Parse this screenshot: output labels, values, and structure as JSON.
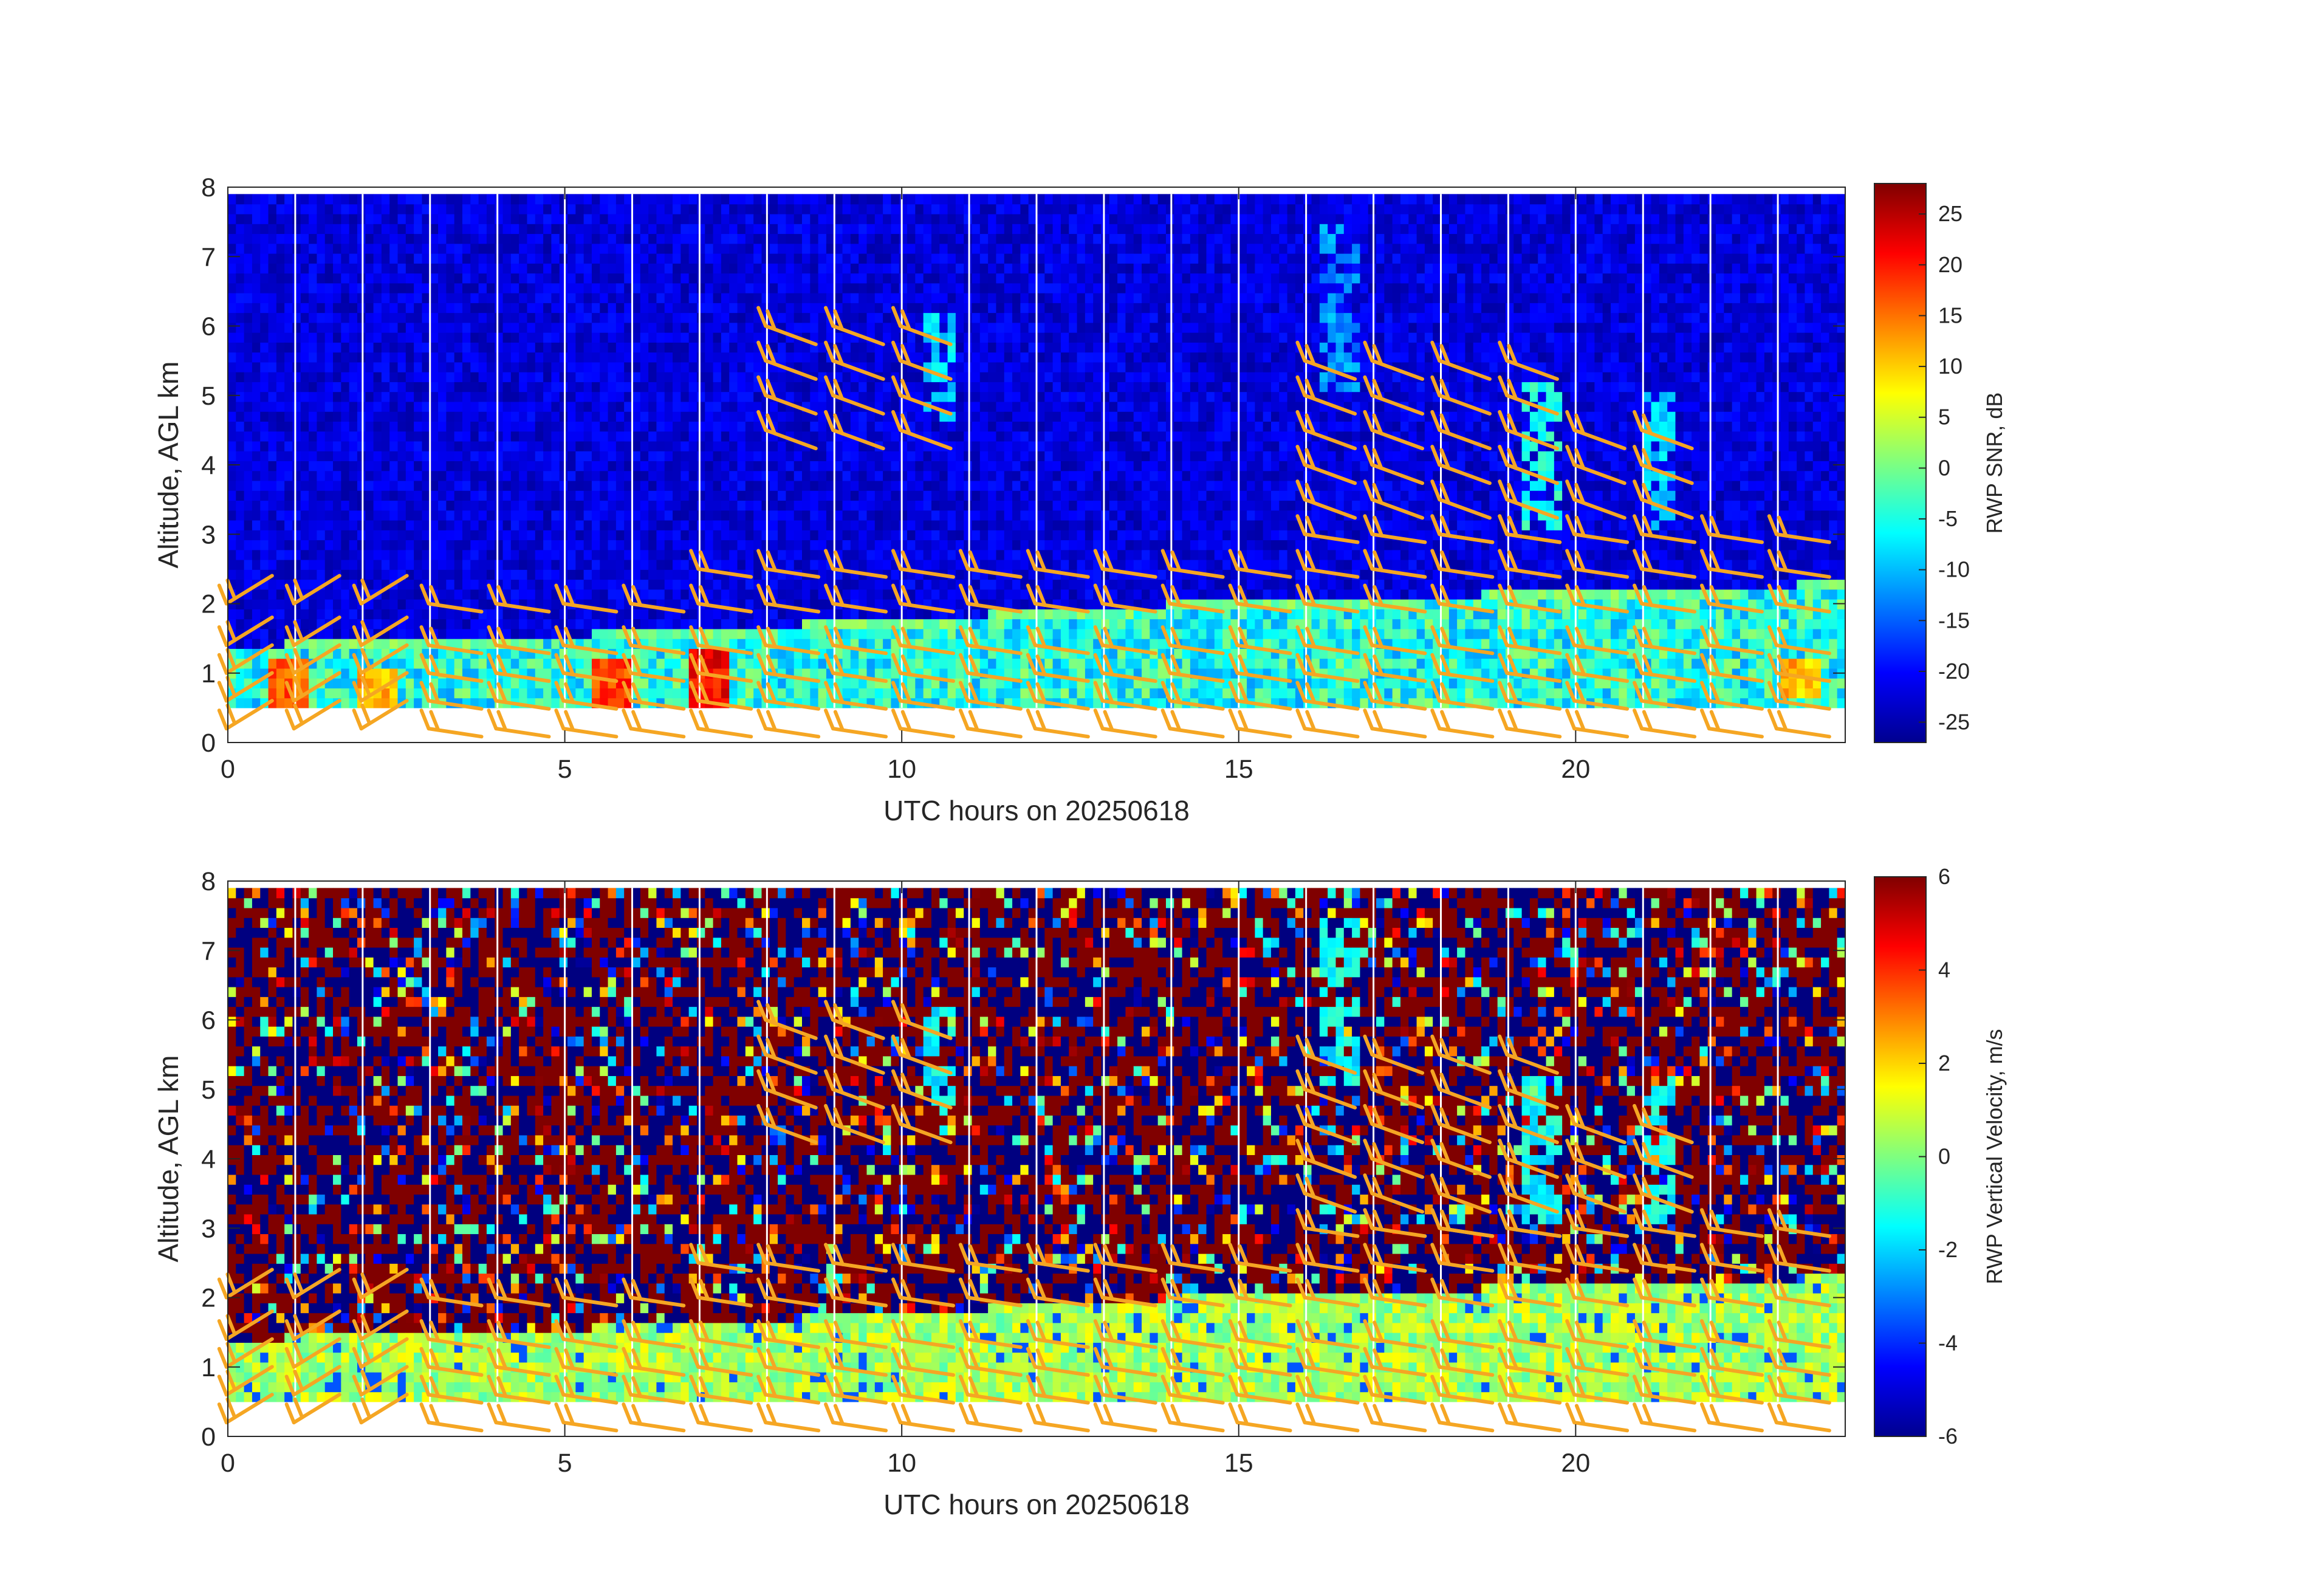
{
  "chart_data": [
    {
      "type": "heatmap",
      "panel": "top",
      "xlabel": "UTC hours on 20250618",
      "ylabel": "Altitude, AGL km",
      "xlim": [
        0,
        24
      ],
      "ylim": [
        0,
        8
      ],
      "xticks": [
        0,
        5,
        10,
        15,
        20
      ],
      "yticks": [
        0,
        1,
        2,
        3,
        4,
        5,
        6,
        7,
        8
      ],
      "colorbar": {
        "title": "RWP SNR, dB",
        "range": [
          -27,
          28
        ],
        "ticks": [
          25,
          20,
          15,
          10,
          5,
          0,
          -5,
          -10,
          -15,
          -20,
          -25
        ],
        "colormap": "jet"
      },
      "data_coverage": {
        "altitude_range_km": [
          0.5,
          7.9
        ],
        "boundary_layer_top_km": [
          [
            0,
            1.4
          ],
          [
            6.5,
            1.6
          ],
          [
            14,
            2.0
          ],
          [
            24,
            2.3
          ]
        ],
        "background_snr_db": -22,
        "boundary_layer_snr_db": -5,
        "hot_spots": [
          {
            "hour": 0.9,
            "alt": [
              0.5,
              1.2
            ],
            "snr": 20
          },
          {
            "hour": 2.2,
            "alt": [
              0.5,
              1.0
            ],
            "snr": 15
          },
          {
            "hour": 5.7,
            "alt": [
              0.5,
              1.2
            ],
            "snr": 22
          },
          {
            "hour": 7.1,
            "alt": [
              0.5,
              1.3
            ],
            "snr": 25
          },
          {
            "hour": 23.3,
            "alt": [
              0.6,
              1.2
            ],
            "snr": 15
          }
        ],
        "cloud_features": [
          {
            "hour": 10.6,
            "alt": [
              4.6,
              6.2
            ],
            "snr": -8
          },
          {
            "hour": 16.5,
            "alt": [
              5.0,
              7.5
            ],
            "snr": -12
          },
          {
            "hour": 19.5,
            "alt": [
              3.0,
              5.2
            ],
            "snr": -5
          },
          {
            "hour": 21.2,
            "alt": [
              3.0,
              5.0
            ],
            "snr": -8
          }
        ]
      },
      "wind_barbs_overlay": true
    },
    {
      "type": "heatmap",
      "panel": "bottom",
      "xlabel": "UTC hours on 20250618",
      "ylabel": "Altitude, AGL km",
      "xlim": [
        0,
        24
      ],
      "ylim": [
        0,
        8
      ],
      "xticks": [
        0,
        5,
        10,
        15,
        20
      ],
      "yticks": [
        0,
        1,
        2,
        3,
        4,
        5,
        6,
        7,
        8
      ],
      "colorbar": {
        "title": "RWP Vertical Velocity, m/s",
        "range": [
          -6,
          6
        ],
        "ticks": [
          6,
          4,
          2,
          0,
          -2,
          -4,
          -6
        ],
        "colormap": "jet"
      },
      "data_coverage": {
        "altitude_range_km": [
          0.5,
          7.9
        ],
        "boundary_layer_velocity_ms": 0.5,
        "noise_above_boundary_layer": "alternating saturated ±6 m/s"
      },
      "wind_barbs_overlay": true
    }
  ],
  "colors": {
    "barb": "#f5a623",
    "gap_line": "#ffffff",
    "axis": "#262626"
  }
}
